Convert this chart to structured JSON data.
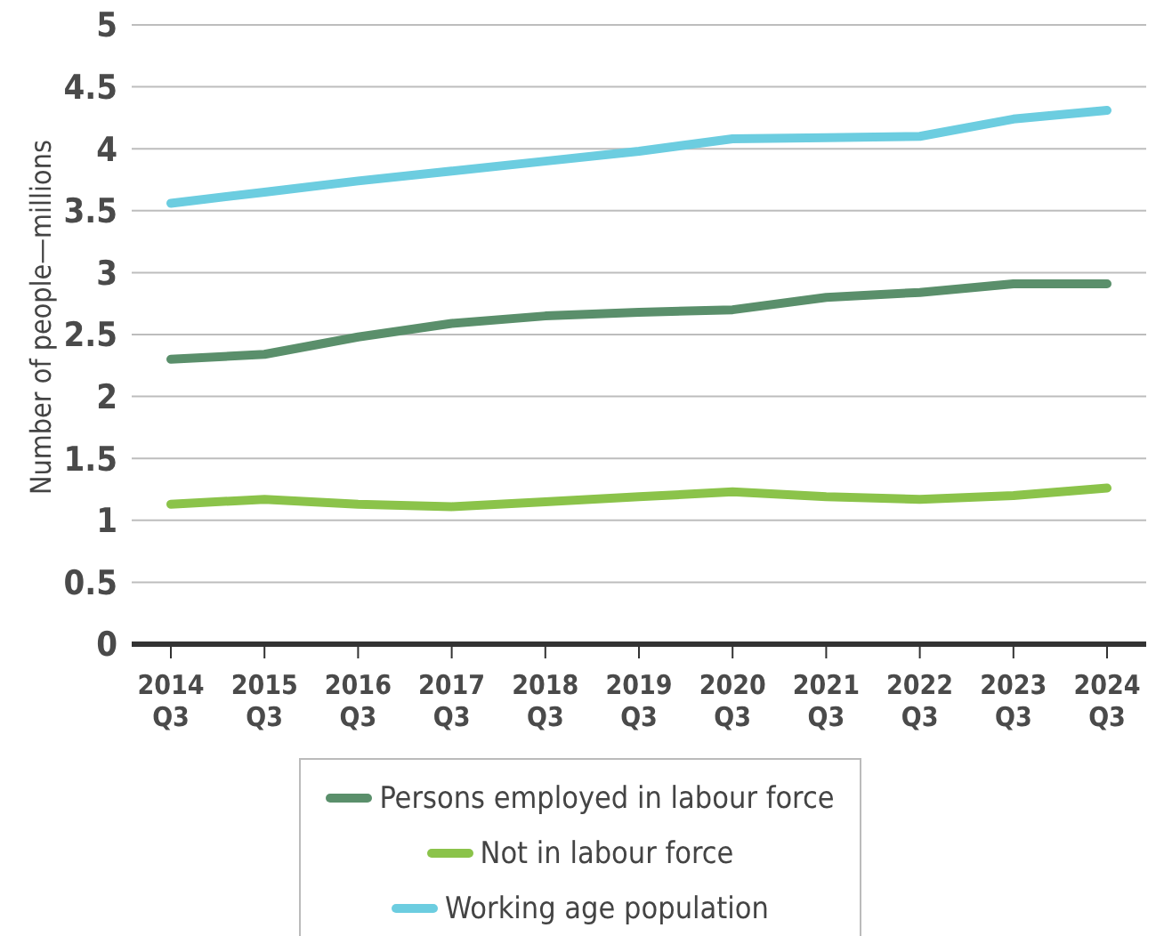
{
  "chart_data": {
    "type": "line",
    "ylabel": "Number of people—millions",
    "categories": [
      "2014 Q3",
      "2015 Q3",
      "2016 Q3",
      "2017 Q3",
      "2018 Q3",
      "2019 Q3",
      "2020 Q3",
      "2021 Q3",
      "2022 Q3",
      "2023 Q3",
      "2024 Q3"
    ],
    "series": [
      {
        "name": "Persons employed in labour force",
        "color": "#5a8f6b",
        "values": [
          2.3,
          2.34,
          2.48,
          2.59,
          2.65,
          2.68,
          2.7,
          2.8,
          2.84,
          2.91,
          2.91
        ]
      },
      {
        "name": "Not in labour force",
        "color": "#8bc34a",
        "values": [
          1.13,
          1.17,
          1.13,
          1.11,
          1.15,
          1.19,
          1.23,
          1.19,
          1.17,
          1.2,
          1.26
        ]
      },
      {
        "name": "Working age population",
        "color": "#6ccde0",
        "values": [
          3.56,
          3.65,
          3.74,
          3.82,
          3.9,
          3.98,
          4.08,
          4.09,
          4.1,
          4.24,
          4.31
        ]
      }
    ],
    "ylim": [
      0,
      5
    ],
    "yticks": [
      0,
      0.5,
      1,
      1.5,
      2,
      2.5,
      3,
      3.5,
      4,
      4.5,
      5
    ],
    "grid": "y",
    "legend": "bottom",
    "marker": "none",
    "line_style": "solid"
  }
}
